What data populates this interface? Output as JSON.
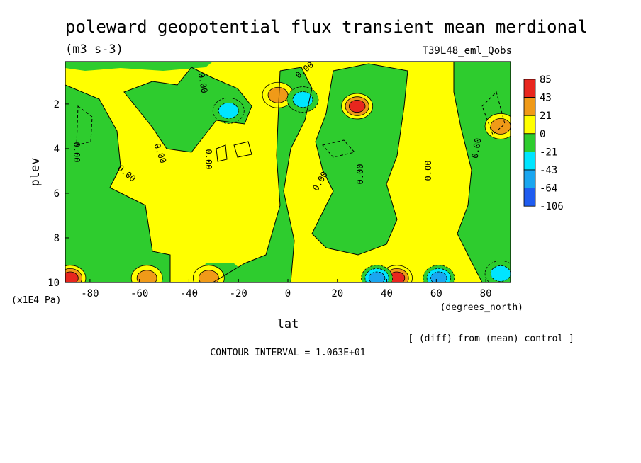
{
  "chart_data": {
    "type": "heatmap",
    "title": "poleward geopotential flux transient mean merdional",
    "units": "(m3 s-3)",
    "experiment": "T39L48_eml_Qobs",
    "xlabel": "lat",
    "xunits": "(degrees_north)",
    "ylabel": "plev",
    "yunits": "(x1E4 Pa)",
    "x_ticks": [
      -80,
      -60,
      -40,
      -20,
      0,
      20,
      40,
      60,
      80
    ],
    "x_tick_labels": [
      "-80",
      "-60",
      "-40",
      "-20",
      "0",
      "20",
      "40",
      "60",
      "80"
    ],
    "y_ticks": [
      2,
      4,
      6,
      8,
      10
    ],
    "y_tick_labels": [
      "2",
      "4",
      "6",
      "8",
      "10"
    ],
    "xlim": [
      -90,
      90
    ],
    "ylim": [
      10,
      0.1
    ],
    "colorbar": {
      "levels": [
        "85",
        "43",
        "21",
        "0",
        "-21",
        "-43",
        "-64",
        "-106"
      ],
      "colors": [
        "#e8261e",
        "#f09a18",
        "#ffff00",
        "#2ecc2e",
        "#00e5ff",
        "#1aa6f0",
        "#1f5cf0"
      ]
    },
    "contour_label": "0.00",
    "contour_interval_text": "CONTOUR INTERVAL = 1.063E+01",
    "note": "[ (diff) from (mean) control ]",
    "features": [
      {
        "name": "max-upper-30N",
        "lat": 28,
        "plev": 2.1,
        "value": 60
      },
      {
        "name": "min-upper-25S",
        "lat": -24,
        "plev": 2.3,
        "value": -30
      },
      {
        "name": "max-upper-5S",
        "lat": -4,
        "plev": 1.6,
        "value": 25
      },
      {
        "name": "min-upper-5N",
        "lat": 6,
        "plev": 1.8,
        "value": -25
      },
      {
        "name": "max-85N",
        "lat": 86,
        "plev": 3.0,
        "value": 25
      },
      {
        "name": "max-sfc-44N",
        "lat": 44,
        "plev": 9.8,
        "value": 60
      },
      {
        "name": "max-sfc-88S",
        "lat": -88,
        "plev": 9.8,
        "value": 50
      },
      {
        "name": "max-sfc-58S",
        "lat": -57,
        "plev": 9.8,
        "value": 25
      },
      {
        "name": "max-sfc-32S",
        "lat": -32,
        "plev": 9.8,
        "value": 25
      },
      {
        "name": "min-sfc-35N",
        "lat": 36,
        "plev": 9.8,
        "value": -50
      },
      {
        "name": "min-sfc-60N",
        "lat": 61,
        "plev": 9.8,
        "value": -45
      },
      {
        "name": "min-sfc-85N",
        "lat": 86,
        "plev": 9.6,
        "value": -40
      }
    ]
  }
}
